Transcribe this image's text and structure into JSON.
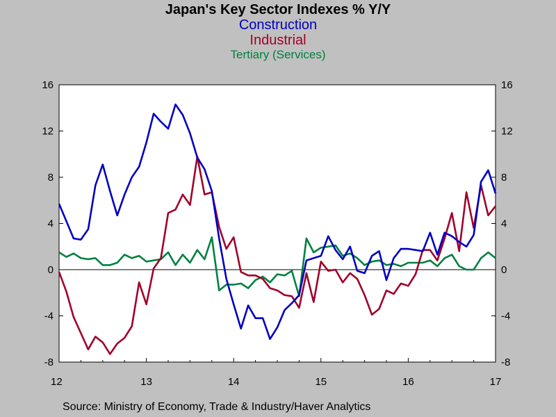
{
  "chart_data": {
    "type": "line",
    "title": "Japan's Key Sector Indexes % Y/Y",
    "subtitles": [
      "Construction",
      "Industrial",
      "Tertiary (Services)"
    ],
    "source": "Source:  Ministry of Economy, Trade & Industry/Haver Analytics",
    "x_start": 2012.0,
    "x_step": 0.0833333,
    "x_tick_labels": [
      "12",
      "13",
      "14",
      "15",
      "16",
      "17"
    ],
    "x_ticks": [
      2012,
      2013,
      2014,
      2015,
      2016,
      2017
    ],
    "ylim": [
      -8,
      16
    ],
    "y_ticks": [
      -8,
      -4,
      0,
      4,
      8,
      12,
      16
    ],
    "y_tick_labels": [
      "-8",
      "-4",
      "0",
      "4",
      "8",
      "12",
      "16"
    ],
    "series": [
      {
        "name": "Construction",
        "color": "#0000c0",
        "values": [
          5.7,
          4.2,
          2.7,
          2.6,
          3.5,
          7.3,
          9.1,
          6.8,
          4.7,
          6.5,
          8.0,
          8.9,
          11.0,
          13.5,
          12.8,
          12.2,
          14.3,
          13.4,
          11.8,
          9.7,
          8.7,
          6.8,
          2.7,
          -0.8,
          -3.0,
          -5.1,
          -3.1,
          -4.2,
          -4.2,
          -6.0,
          -5.0,
          -3.5,
          -2.9,
          -2.2,
          0.8,
          1.0,
          1.2,
          2.9,
          1.7,
          0.9,
          2.0,
          -0.1,
          -0.3,
          1.2,
          1.6,
          -0.9,
          1.0,
          1.8,
          1.8,
          1.7,
          1.6,
          3.2,
          1.3,
          3.2,
          2.9,
          2.4,
          2.0,
          3.0,
          7.6,
          8.6,
          6.6
        ]
      },
      {
        "name": "Industrial",
        "color": "#a0002a",
        "values": [
          -0.2,
          -1.9,
          -4.1,
          -5.5,
          -6.9,
          -5.8,
          -6.3,
          -7.3,
          -6.4,
          -5.9,
          -4.9,
          -1.1,
          -3.0,
          0.1,
          1.0,
          4.9,
          5.2,
          6.5,
          5.6,
          9.8,
          6.5,
          6.7,
          3.7,
          1.8,
          2.8,
          -0.2,
          -0.5,
          -0.5,
          -0.8,
          -1.6,
          -1.8,
          -2.2,
          -2.3,
          -3.3,
          -0.3,
          -2.8,
          0.7,
          -0.1,
          0.0,
          -1.1,
          -0.3,
          -0.8,
          -2.2,
          -3.9,
          -3.4,
          -1.8,
          -2.1,
          -1.2,
          -1.4,
          -0.4,
          1.7,
          1.7,
          0.8,
          2.7,
          4.9,
          1.6,
          6.7,
          3.6,
          7.3,
          4.7,
          5.5
        ]
      },
      {
        "name": "Tertiary (Services)",
        "color": "#008040",
        "values": [
          1.5,
          1.1,
          1.4,
          1.0,
          0.9,
          1.0,
          0.4,
          0.4,
          0.6,
          1.3,
          1.0,
          1.2,
          0.7,
          0.8,
          0.9,
          1.5,
          0.4,
          1.3,
          0.6,
          1.7,
          0.9,
          2.8,
          -1.8,
          -1.3,
          -1.3,
          -1.2,
          -1.6,
          -0.9,
          -0.6,
          -1.1,
          -0.4,
          -0.5,
          -0.1,
          -2.3,
          2.7,
          1.5,
          1.9,
          2.0,
          2.1,
          1.2,
          1.4,
          1.0,
          0.4,
          0.7,
          0.8,
          0.4,
          0.5,
          0.3,
          0.6,
          0.6,
          0.6,
          0.8,
          0.3,
          1.0,
          1.3,
          0.3,
          0.0,
          0.0,
          1.0,
          1.5,
          1.0
        ]
      }
    ]
  }
}
